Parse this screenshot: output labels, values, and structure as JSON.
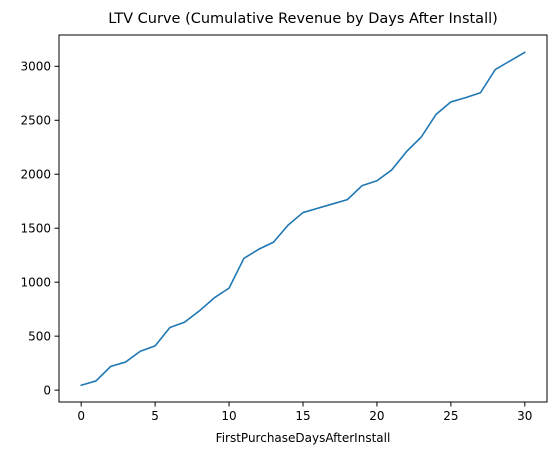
{
  "chart_data": {
    "type": "line",
    "title": "LTV Curve (Cumulative Revenue by Days After Install)",
    "xlabel": "FirstPurchaseDaysAfterInstall",
    "ylabel": "",
    "xlim": [
      -1.5,
      31.5
    ],
    "ylim": [
      -110,
      3290
    ],
    "x_ticks": [
      0,
      5,
      10,
      15,
      20,
      25,
      30
    ],
    "y_ticks": [
      0,
      500,
      1000,
      1500,
      2000,
      2500,
      3000
    ],
    "grid": false,
    "legend": "none",
    "series": [
      {
        "color": "#1f77b4",
        "x": [
          0,
          1,
          2,
          3,
          4,
          5,
          6,
          7,
          8,
          9,
          10,
          11,
          12,
          13,
          14,
          15,
          16,
          17,
          18,
          19,
          20,
          21,
          22,
          23,
          24,
          25,
          26,
          27,
          28,
          29,
          30
        ],
        "y": [
          45,
          85,
          220,
          260,
          360,
          410,
          580,
          630,
          735,
          855,
          945,
          1220,
          1305,
          1370,
          1530,
          1645,
          1685,
          1725,
          1765,
          1895,
          1940,
          2040,
          2210,
          2345,
          2555,
          2670,
          2710,
          2755,
          2970,
          3050,
          3130
        ]
      }
    ]
  }
}
